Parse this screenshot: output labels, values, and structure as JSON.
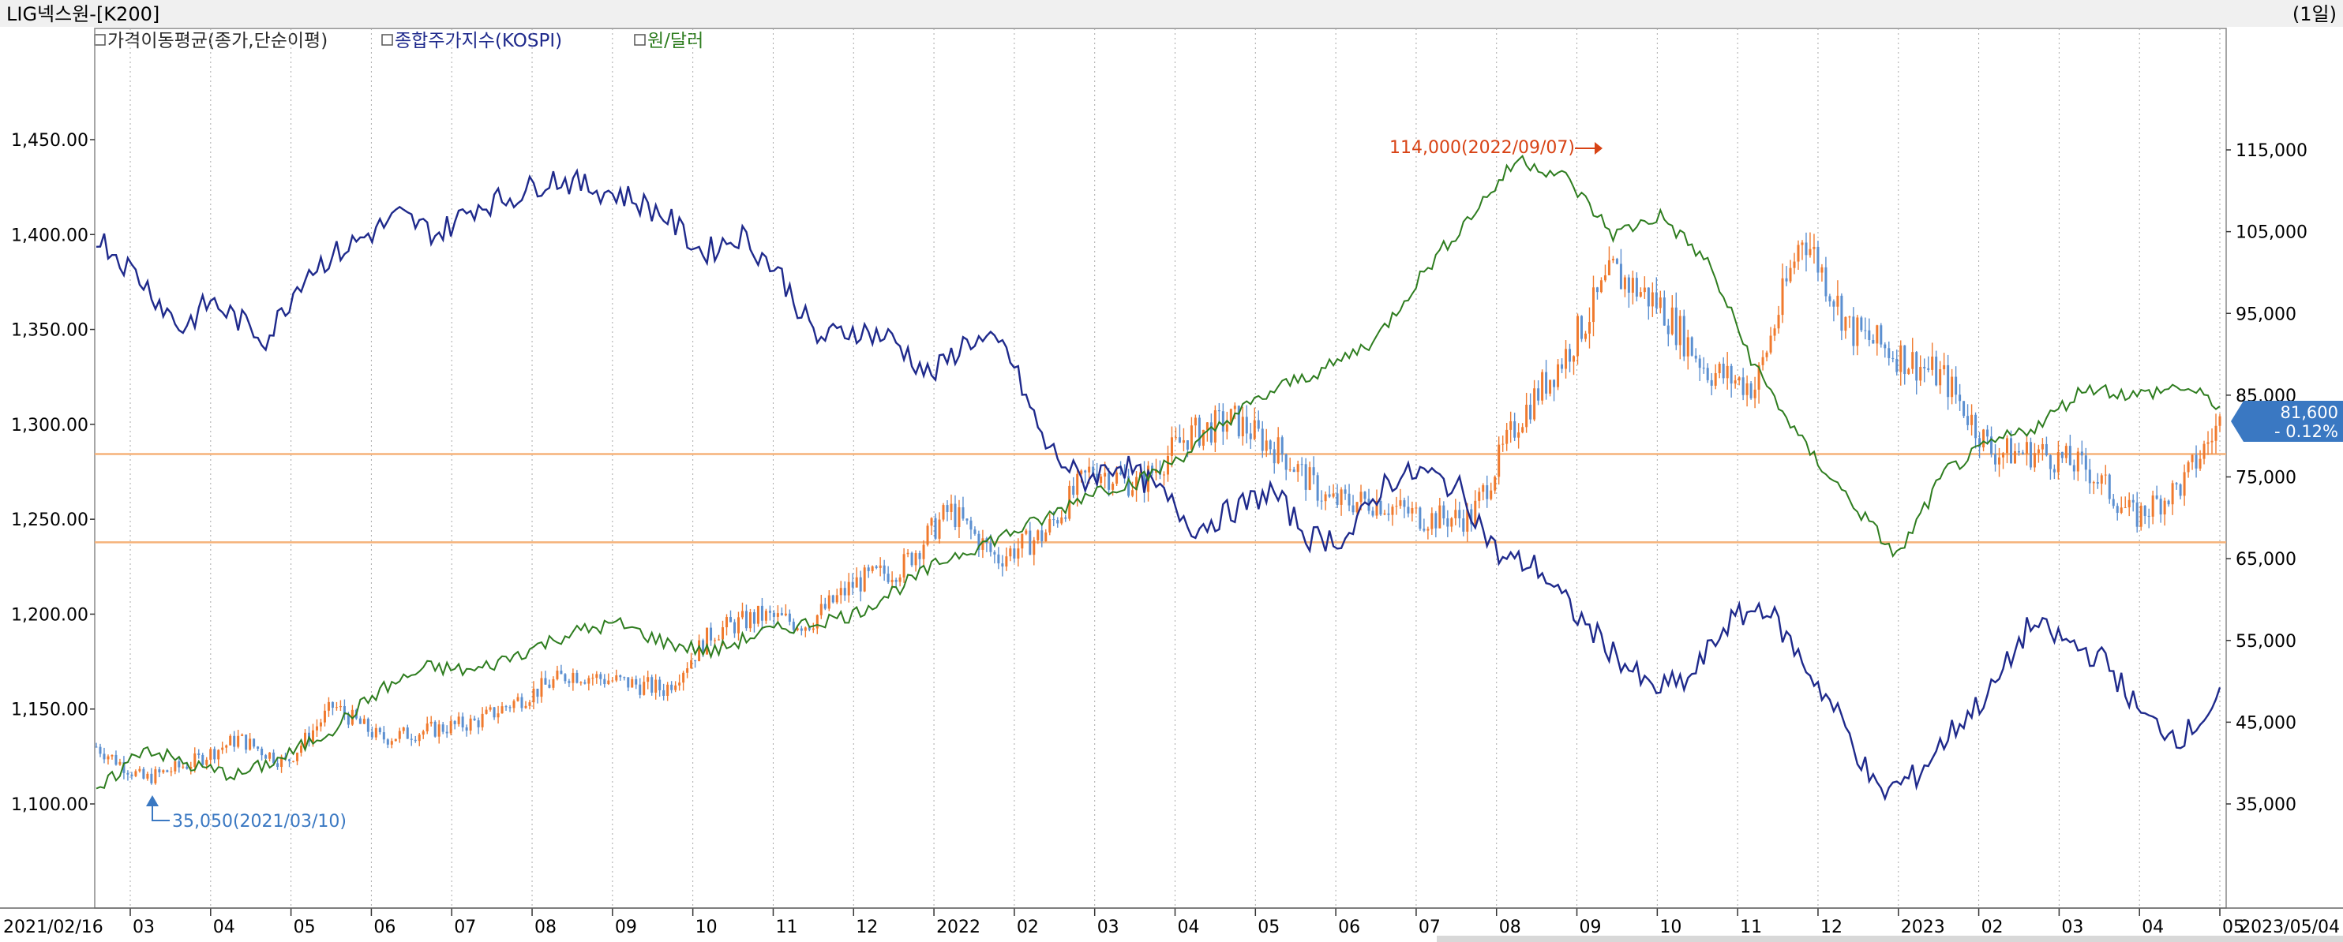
{
  "header": {
    "title": "LIG넥스원-[K200]",
    "period": "(1일)"
  },
  "legend": [
    {
      "label": "가격이동평균(종가,단순이평)",
      "color": "#2b2b2b"
    },
    {
      "label": "종합주가지수(KOSPI)",
      "color": "#1f2a8c"
    },
    {
      "label": "원/달러",
      "color": "#2e7d1f"
    }
  ],
  "colors": {
    "kospi": "#1f2a8c",
    "usdkrw": "#2e7d1f",
    "up": "#f07a2e",
    "down": "#5b8fd0",
    "hline": "#f5b27a",
    "grid": "#a9a9a9",
    "max_label": "#d84315",
    "min_label": "#3a78c2",
    "price_badge": "#3a78c2"
  },
  "annotations": {
    "max_label": "114,000(2022/09/07)",
    "min_label": "35,050(2021/03/10)"
  },
  "price_badge": {
    "value": "81,600",
    "change": "- 0.12%"
  },
  "x_axis": {
    "start": "2021/02/16",
    "end": "2023/05/04",
    "ticks": [
      "03",
      "04",
      "05",
      "06",
      "07",
      "08",
      "09",
      "10",
      "11",
      "12",
      "2022",
      "02",
      "03",
      "04",
      "05",
      "06",
      "07",
      "08",
      "09",
      "10",
      "11",
      "12",
      "2023",
      "02",
      "03",
      "04",
      "05"
    ]
  },
  "chart_data": {
    "type": "line",
    "title": "LIG넥스원-[K200]",
    "left_axis": {
      "series": "원/달러 & 종합주가지수(KOSPI)",
      "range": [
        1080,
        1490
      ],
      "ticks": [
        "1,100.00",
        "1,150.00",
        "1,200.00",
        "1,250.00",
        "1,300.00",
        "1,350.00",
        "1,400.00",
        "1,450.00"
      ]
    },
    "right_axis": {
      "series": "LIG넥스원 price (KRW)",
      "range": [
        29000,
        124000
      ],
      "ticks": [
        "35,000",
        "45,000",
        "55,000",
        "65,000",
        "75,000",
        "85,000",
        "95,000",
        "105,000",
        "115,000"
      ]
    },
    "horizontal_lines": [
      77800,
      67000
    ],
    "series": [
      {
        "name": "종합주가지수(KOSPI)",
        "axis": "left",
        "x": [
          0,
          0.05,
          0.09,
          0.12,
          0.18,
          0.22,
          0.27,
          0.32,
          0.36,
          0.4,
          0.44,
          0.48,
          0.52,
          0.56,
          0.6,
          0.64,
          0.68,
          0.72,
          0.76,
          0.8,
          0.84,
          0.88,
          0.92,
          0.96,
          1.0,
          1.04,
          1.08,
          1.12,
          1.16,
          1.2,
          1.24,
          1.28,
          1.32,
          1.36,
          1.4,
          1.44,
          1.48,
          1.52,
          1.56,
          1.6,
          1.64,
          1.68,
          1.72,
          1.76,
          1.8,
          1.84,
          1.88,
          1.92,
          1.96,
          2.0,
          2.04,
          2.08,
          2.12,
          2.16,
          2.2,
          2.24
        ],
        "values": [
          1400,
          1375,
          1350,
          1365,
          1345,
          1380,
          1395,
          1410,
          1400,
          1415,
          1420,
          1430,
          1425,
          1420,
          1410,
          1390,
          1400,
          1380,
          1345,
          1350,
          1345,
          1325,
          1345,
          1340,
          1290,
          1270,
          1280,
          1265,
          1245,
          1255,
          1265,
          1240,
          1240,
          1270,
          1275,
          1265,
          1230,
          1225,
          1200,
          1180,
          1160,
          1165,
          1195,
          1205,
          1175,
          1145,
          1105,
          1115,
          1140,
          1160,
          1195,
          1185,
          1175,
          1145,
          1135,
          1155
        ]
      },
      {
        "name": "원/달러",
        "axis": "left",
        "x": [
          0,
          0.05,
          0.1,
          0.15,
          0.2,
          0.25,
          0.3,
          0.35,
          0.4,
          0.45,
          0.5,
          0.55,
          0.6,
          0.65,
          0.7,
          0.75,
          0.8,
          0.85,
          0.9,
          0.95,
          1.0,
          1.05,
          1.1,
          1.15,
          1.2,
          1.25,
          1.3,
          1.35,
          1.4,
          1.45,
          1.5,
          1.55,
          1.6,
          1.65,
          1.7,
          1.75,
          1.8,
          1.85,
          1.9,
          1.95,
          2.0,
          2.05,
          2.1,
          2.15,
          2.2,
          2.24
        ],
        "values": [
          1105,
          1130,
          1120,
          1115,
          1125,
          1140,
          1160,
          1172,
          1170,
          1180,
          1190,
          1195,
          1185,
          1180,
          1190,
          1195,
          1200,
          1215,
          1230,
          1240,
          1250,
          1265,
          1270,
          1285,
          1305,
          1320,
          1330,
          1345,
          1380,
          1410,
          1440,
          1430,
          1400,
          1410,
          1385,
          1330,
          1290,
          1260,
          1230,
          1275,
          1290,
          1300,
          1320,
          1315,
          1320,
          1310
        ]
      },
      {
        "name": "LIG넥스원",
        "axis": "right",
        "type": "candlestick",
        "x": [
          0,
          0.05,
          0.1,
          0.15,
          0.2,
          0.25,
          0.3,
          0.35,
          0.4,
          0.45,
          0.5,
          0.55,
          0.6,
          0.65,
          0.7,
          0.75,
          0.8,
          0.85,
          0.9,
          0.95,
          1.0,
          1.05,
          1.1,
          1.15,
          1.2,
          1.25,
          1.3,
          1.35,
          1.4,
          1.45,
          1.5,
          1.55,
          1.6,
          1.65,
          1.7,
          1.75,
          1.8,
          1.85,
          1.9,
          1.95,
          2.0,
          2.05,
          2.1,
          2.15,
          2.2,
          2.24
        ],
        "values": [
          42000,
          38000,
          40000,
          43000,
          40000,
          47000,
          43000,
          44000,
          45000,
          48000,
          51000,
          50000,
          49000,
          56000,
          58000,
          57000,
          62000,
          64000,
          71000,
          65000,
          68000,
          76000,
          74000,
          80000,
          82000,
          78000,
          72000,
          72000,
          70000,
          70000,
          82000,
          90000,
          100000,
          96000,
          88000,
          86000,
          105000,
          93000,
          90000,
          87000,
          78000,
          78000,
          76000,
          70000,
          74000,
          81600
        ]
      }
    ],
    "max": {
      "value": 114000,
      "date": "2022/09/07"
    },
    "min": {
      "value": 35050,
      "date": "2021/03/10"
    },
    "last": {
      "value": 81600,
      "change_pct": -0.12
    }
  }
}
